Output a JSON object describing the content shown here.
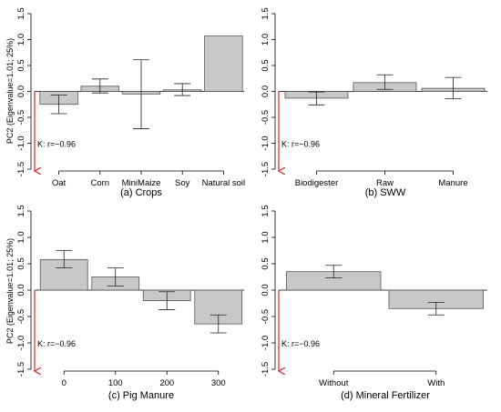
{
  "figure": {
    "y_axis_label": "PC2 (Eigenvalue=1.01; 25%)",
    "annotation_color": "#d62728",
    "bar_color": "#c8c8c8",
    "bar_edge": "#555555"
  },
  "chart_data": [
    {
      "type": "bar",
      "caption": "(a) Crops",
      "ylabel": "PC2 (Eigenvalue=1.01; 25%)",
      "ylim": [
        -1.5,
        1.5
      ],
      "yticks": [
        "-1.5",
        "-1.0",
        "-0.5",
        "0.0",
        "0.5",
        "1.0",
        "1.5"
      ],
      "categories": [
        "Oat",
        "Corn",
        "MiniMaize",
        "Soy",
        "Natural soil"
      ],
      "values": [
        -0.25,
        0.1,
        -0.05,
        0.03,
        1.07
      ],
      "err_low": [
        -0.43,
        -0.03,
        -0.72,
        -0.08,
        null
      ],
      "err_high": [
        -0.07,
        0.24,
        0.61,
        0.15,
        null
      ],
      "annotation": "K: r=−0.96"
    },
    {
      "type": "bar",
      "caption": "(b) SWW",
      "ylabel": "",
      "ylim": [
        -1.5,
        1.5
      ],
      "yticks": [
        "-1.5",
        "-1.0",
        "-0.5",
        "0.0",
        "0.5",
        "1.0",
        "1.5"
      ],
      "categories": [
        "Biodigester",
        "Raw",
        "Manure"
      ],
      "values": [
        -0.13,
        0.17,
        0.06
      ],
      "err_low": [
        -0.26,
        0.04,
        -0.14
      ],
      "err_high": [
        -0.01,
        0.32,
        0.27
      ],
      "annotation": "K: r=−0.96"
    },
    {
      "type": "bar",
      "caption": "(c) Pig Manure",
      "ylabel": "PC2 (Eigenvalue=1.01; 25%)",
      "ylim": [
        -1.5,
        1.5
      ],
      "yticks": [
        "-1.5",
        "-1.0",
        "-0.5",
        "0.0",
        "0.5",
        "1.0",
        "1.5"
      ],
      "categories": [
        "0",
        "100",
        "200",
        "300"
      ],
      "values": [
        0.58,
        0.25,
        -0.2,
        -0.64
      ],
      "err_low": [
        0.42,
        0.08,
        -0.37,
        -0.81
      ],
      "err_high": [
        0.75,
        0.42,
        -0.03,
        -0.47
      ],
      "annotation": "K: r=−0.96"
    },
    {
      "type": "bar",
      "caption": "(d) Mineral Fertilizer",
      "ylabel": "",
      "ylim": [
        -1.5,
        1.5
      ],
      "yticks": [
        "-1.5",
        "-1.0",
        "-0.5",
        "0.0",
        "0.5",
        "1.0",
        "1.5"
      ],
      "categories": [
        "Without",
        "With"
      ],
      "values": [
        0.35,
        -0.35
      ],
      "err_low": [
        0.23,
        -0.47
      ],
      "err_high": [
        0.47,
        -0.23
      ],
      "annotation": "K: r=−0.96"
    }
  ]
}
